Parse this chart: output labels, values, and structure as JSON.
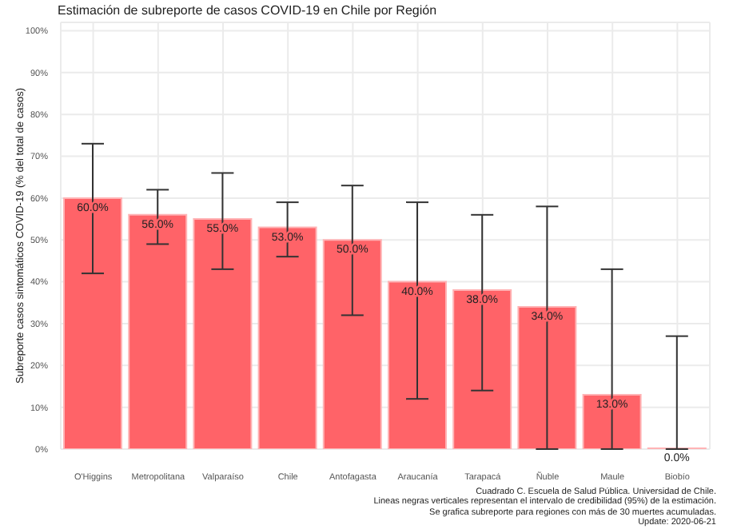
{
  "chart_data": {
    "type": "bar",
    "title": "Estimación de subreporte de casos COVID-19 en Chile por Región",
    "ylabel": "Subreporte casos sintomáticos COVID-19 (% del total de casos)",
    "categories": [
      "O'Higgins",
      "Metropolitana",
      "Valparaíso",
      "Chile",
      "Antofagasta",
      "Araucanía",
      "Tarapacá",
      "Ñuble",
      "Maule",
      "Biobío"
    ],
    "values": [
      60,
      56,
      55,
      53,
      50,
      40,
      38,
      34,
      13,
      0
    ],
    "value_labels": [
      "60.0%",
      "56.0%",
      "55.0%",
      "53.0%",
      "50.0%",
      "40.0%",
      "38.0%",
      "34.0%",
      "13.0%",
      "0.0%"
    ],
    "errors": [
      [
        42,
        73
      ],
      [
        49,
        62
      ],
      [
        43,
        66
      ],
      [
        46,
        59
      ],
      [
        32,
        63
      ],
      [
        12,
        59
      ],
      [
        14,
        56
      ],
      [
        0,
        58
      ],
      [
        0,
        43
      ],
      [
        0,
        27
      ]
    ],
    "color": "#ff6368",
    "ylim": [
      0,
      102
    ],
    "yticks": [
      {
        "value": 0,
        "label": "0%"
      },
      {
        "value": 10,
        "label": "10%"
      },
      {
        "value": 20,
        "label": "20%"
      },
      {
        "value": 30,
        "label": "30%"
      },
      {
        "value": 40,
        "label": "40%"
      },
      {
        "value": 50,
        "label": "50%"
      },
      {
        "value": 60,
        "label": "60%"
      },
      {
        "value": 70,
        "label": "70%"
      },
      {
        "value": 80,
        "label": "80%"
      },
      {
        "value": 90,
        "label": "90%"
      },
      {
        "value": 100,
        "label": "100%"
      }
    ],
    "grid": true,
    "annotations": [
      "Cuadrado C. Escuela de Salud Pública. Universidad de Chile.",
      "Lineas negras verticales representan el intervalo de credibilidad (95%) de la estimación.",
      "Se grafica subreporte para regiones con más de 30 muertes acumuladas.",
      "Update: 2020-06-21"
    ]
  }
}
